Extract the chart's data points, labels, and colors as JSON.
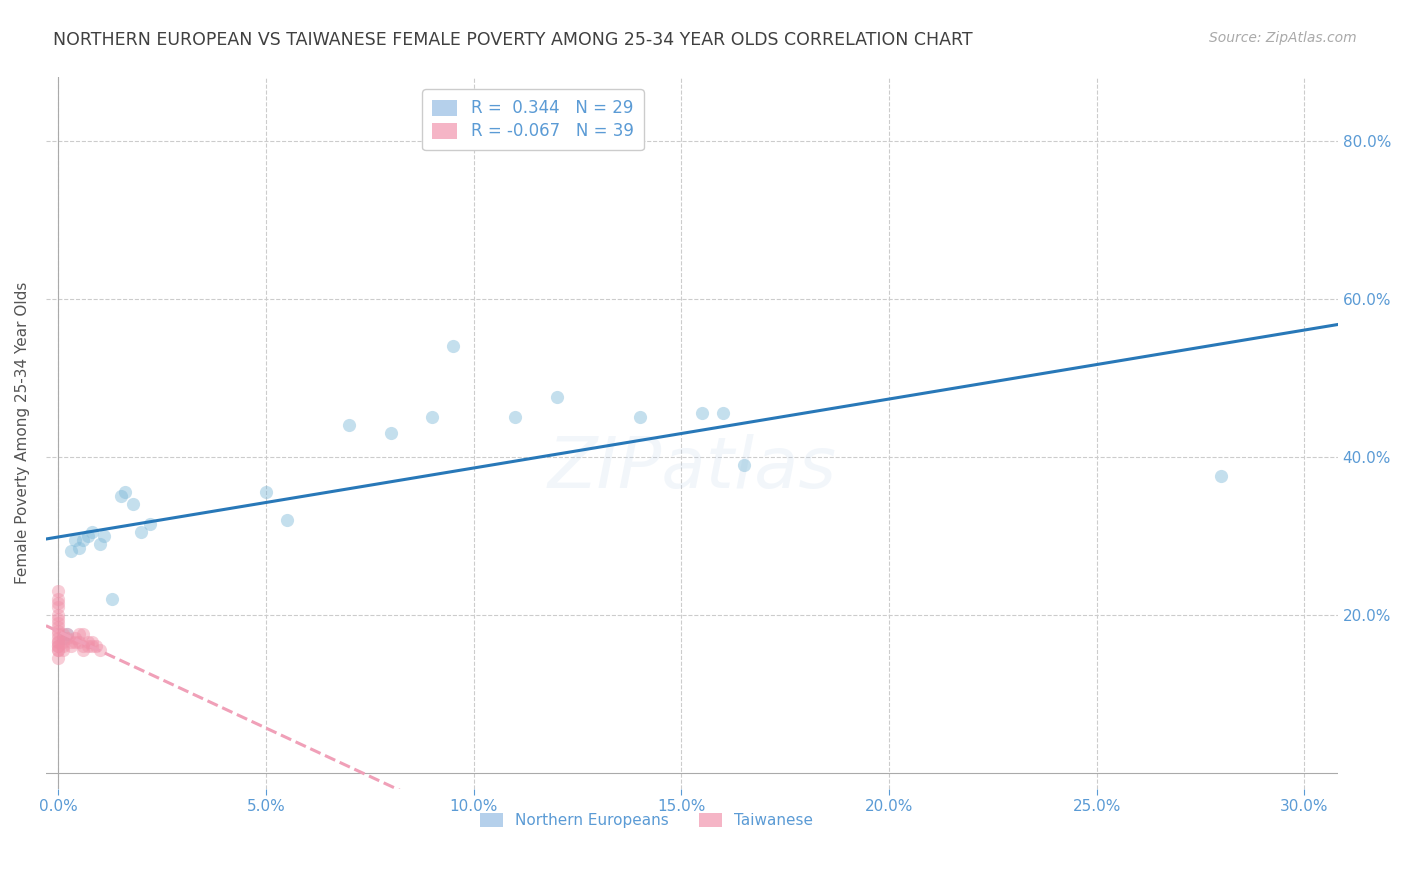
{
  "title": "NORTHERN EUROPEAN VS TAIWANESE FEMALE POVERTY AMONG 25-34 YEAR OLDS CORRELATION CHART",
  "source": "Source: ZipAtlas.com",
  "ylabel": "Female Poverty Among 25-34 Year Olds",
  "watermark": "ZIPatlas",
  "legend_R_N": [
    {
      "R": "0.344",
      "N": "29",
      "color": "#a8c8e8"
    },
    {
      "R": "-0.067",
      "N": "39",
      "color": "#f4a8bc"
    }
  ],
  "legend_bottom": [
    "Northern Europeans",
    "Taiwanese"
  ],
  "blue_scatter_color": "#7eb8d8",
  "pink_scatter_color": "#f090a8",
  "blue_line_color": "#2878b8",
  "pink_line_color": "#f0a0b8",
  "xlim": [
    -0.003,
    0.308
  ],
  "ylim": [
    -0.02,
    0.88
  ],
  "xticks": [
    0.0,
    0.05,
    0.1,
    0.15,
    0.2,
    0.25,
    0.3
  ],
  "yticks": [
    0.2,
    0.4,
    0.6,
    0.8
  ],
  "ne_x": [
    0.001,
    0.002,
    0.003,
    0.004,
    0.005,
    0.006,
    0.007,
    0.008,
    0.01,
    0.011,
    0.013,
    0.015,
    0.016,
    0.018,
    0.02,
    0.022,
    0.05,
    0.055,
    0.07,
    0.08,
    0.09,
    0.11,
    0.12,
    0.14,
    0.155,
    0.16,
    0.165,
    0.28,
    0.095
  ],
  "ne_y": [
    0.17,
    0.175,
    0.28,
    0.295,
    0.285,
    0.295,
    0.3,
    0.305,
    0.29,
    0.3,
    0.22,
    0.35,
    0.355,
    0.34,
    0.305,
    0.315,
    0.355,
    0.32,
    0.44,
    0.43,
    0.45,
    0.45,
    0.475,
    0.45,
    0.455,
    0.455,
    0.39,
    0.375,
    0.54
  ],
  "tw_x": [
    0.0,
    0.0,
    0.0,
    0.0,
    0.0,
    0.0,
    0.0,
    0.0,
    0.0,
    0.0,
    0.0,
    0.0,
    0.0,
    0.0,
    0.0,
    0.0,
    0.0,
    0.0,
    0.001,
    0.001,
    0.001,
    0.001,
    0.002,
    0.002,
    0.003,
    0.003,
    0.004,
    0.004,
    0.005,
    0.005,
    0.006,
    0.006,
    0.006,
    0.007,
    0.007,
    0.008,
    0.008,
    0.009,
    0.01
  ],
  "tw_y": [
    0.145,
    0.155,
    0.16,
    0.165,
    0.17,
    0.175,
    0.18,
    0.185,
    0.19,
    0.195,
    0.2,
    0.21,
    0.215,
    0.22,
    0.23,
    0.155,
    0.16,
    0.165,
    0.155,
    0.16,
    0.165,
    0.175,
    0.17,
    0.175,
    0.16,
    0.165,
    0.165,
    0.17,
    0.165,
    0.175,
    0.155,
    0.16,
    0.175,
    0.16,
    0.165,
    0.16,
    0.165,
    0.16,
    0.155
  ],
  "background_color": "#ffffff",
  "grid_color": "#cccccc",
  "title_color": "#404040",
  "axis_tick_color": "#5b9bd5",
  "dot_size": 90,
  "dot_alpha": 0.45,
  "line_width": 2.2,
  "title_fontsize": 12.5,
  "source_fontsize": 10,
  "tick_fontsize": 11,
  "ylabel_fontsize": 11,
  "legend_fontsize": 12,
  "watermark_fontsize": 52,
  "watermark_alpha": 0.18
}
